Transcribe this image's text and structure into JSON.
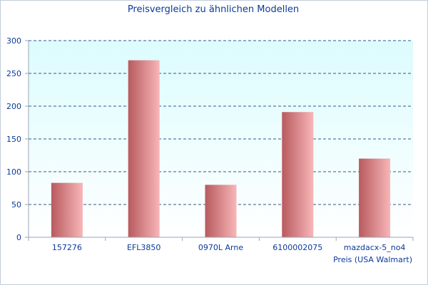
{
  "chart_data": {
    "type": "bar",
    "title": "Preisvergleich zu ähnlichen Modellen",
    "xlabel": "Preis (USA Walmart)",
    "ylabel": "",
    "categories": [
      "157276",
      "EFL3850",
      "0970L Arne",
      "6100002075",
      "mazdacx-5_no4"
    ],
    "values": [
      83,
      270,
      80,
      191,
      120
    ],
    "ylim": [
      0,
      300
    ],
    "yticks": [
      0,
      50,
      100,
      150,
      200,
      250,
      300
    ],
    "grid": true,
    "legend": "none",
    "colors": {
      "bar_dark": "#b85a5e",
      "bar_light": "#f8b6b8",
      "plot_bg_top": "#dcfcfe",
      "plot_bg_bottom": "#ffffff",
      "grid": "#2a5a8a",
      "text": "#0a3a9a"
    }
  }
}
